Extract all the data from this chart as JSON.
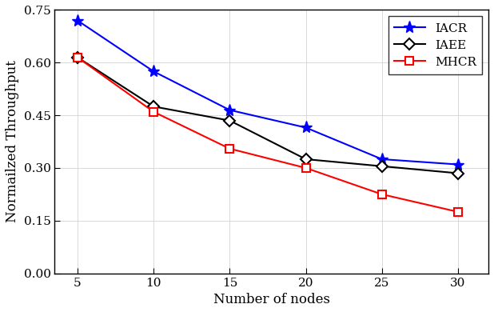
{
  "x": [
    5,
    10,
    15,
    20,
    25,
    30
  ],
  "IACR": [
    0.72,
    0.575,
    0.465,
    0.415,
    0.325,
    0.31
  ],
  "IAEE": [
    0.615,
    0.475,
    0.435,
    0.325,
    0.305,
    0.285
  ],
  "MHCR": [
    0.615,
    0.46,
    0.355,
    0.3,
    0.225,
    0.175
  ],
  "IACR_color": "#0000ff",
  "IAEE_color": "#000000",
  "MHCR_color": "#ff0000",
  "xlabel": "Number of nodes",
  "ylabel": "Normailzed Throughput",
  "xlim": [
    3.5,
    32
  ],
  "ylim": [
    0,
    0.75
  ],
  "yticks": [
    0,
    0.15,
    0.3,
    0.45,
    0.6,
    0.75
  ],
  "xticks": [
    5,
    10,
    15,
    20,
    25,
    30
  ],
  "legend_labels": [
    "IACR",
    "IAEE",
    "MHCR"
  ],
  "grid": true,
  "bg_color": "#ffffff"
}
